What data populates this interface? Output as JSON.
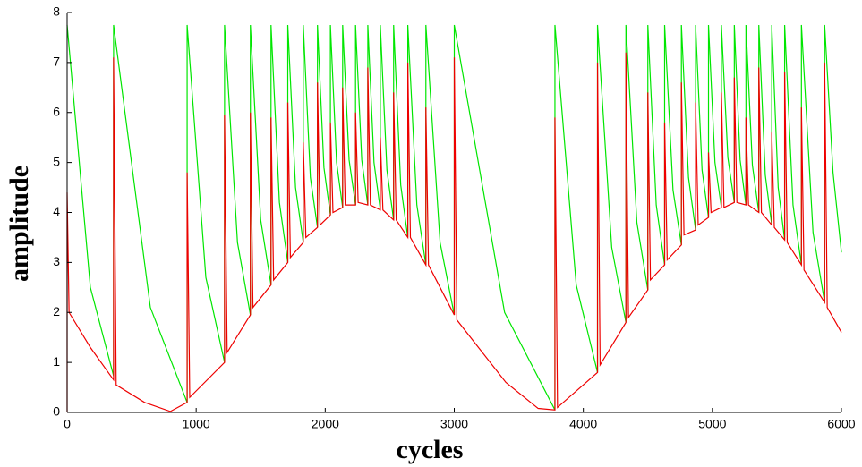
{
  "chart_data": {
    "type": "line",
    "x_label": "cycles",
    "y_label": "amplitude",
    "xlim": [
      0,
      6000
    ],
    "ylim": [
      0,
      8
    ],
    "xticks": [
      0,
      1000,
      2000,
      3000,
      4000,
      5000,
      6000
    ],
    "yticks": [
      0,
      1,
      2,
      3,
      4,
      5,
      6,
      7,
      8
    ],
    "series": [
      {
        "color": "#00e600",
        "x": [
          0,
          180,
          360,
          360,
          645,
          930,
          930,
          1075,
          1220,
          1220,
          1320,
          1420,
          1420,
          1500,
          1580,
          1580,
          1645,
          1710,
          1710,
          1770,
          1830,
          1830,
          1885,
          1940,
          1940,
          1990,
          2040,
          2040,
          2088,
          2135,
          2135,
          2185,
          2235,
          2235,
          2283,
          2330,
          2330,
          2378,
          2427,
          2427,
          2478,
          2530,
          2530,
          2585,
          2640,
          2640,
          2710,
          2780,
          2780,
          2890,
          3000,
          3000,
          3390,
          3780,
          3780,
          3945,
          4110,
          4110,
          4220,
          4330,
          4330,
          4415,
          4500,
          4500,
          4565,
          4630,
          4630,
          4695,
          4760,
          4760,
          4815,
          4870,
          4870,
          4920,
          4970,
          4970,
          5020,
          5070,
          5070,
          5120,
          5170,
          5170,
          5215,
          5260,
          5260,
          5310,
          5360,
          5360,
          5410,
          5460,
          5460,
          5510,
          5560,
          5560,
          5625,
          5690,
          5690,
          5780,
          5870,
          5870,
          5935,
          6000
        ],
        "values": [
          7.75,
          2.5,
          0.73,
          7.75,
          2.1,
          0.2,
          7.75,
          2.7,
          1.0,
          7.75,
          3.4,
          1.95,
          7.75,
          3.85,
          2.55,
          7.75,
          4.2,
          3.0,
          7.75,
          4.5,
          3.4,
          7.75,
          4.7,
          3.7,
          7.75,
          4.9,
          3.95,
          7.75,
          5.0,
          4.1,
          7.75,
          5.05,
          4.15,
          7.75,
          5.05,
          4.15,
          7.75,
          5.0,
          4.05,
          7.75,
          4.85,
          3.85,
          7.75,
          4.55,
          3.5,
          7.75,
          4.15,
          2.95,
          7.75,
          3.4,
          1.95,
          7.75,
          2.0,
          0.05,
          7.75,
          2.55,
          0.8,
          7.75,
          3.3,
          1.8,
          7.75,
          3.8,
          2.45,
          7.75,
          4.15,
          2.95,
          7.75,
          4.45,
          3.35,
          7.75,
          4.7,
          3.65,
          7.75,
          4.85,
          3.9,
          7.75,
          5.0,
          4.1,
          7.75,
          5.1,
          4.2,
          7.75,
          5.05,
          4.15,
          7.75,
          4.95,
          4.0,
          7.75,
          4.75,
          3.75,
          7.75,
          4.5,
          3.45,
          7.75,
          4.15,
          2.95,
          7.75,
          3.6,
          2.2,
          7.75,
          4.8,
          3.2
        ]
      },
      {
        "color": "#ee0000",
        "x": [
          0,
          0,
          15,
          180,
          360,
          360,
          380,
          600,
          800,
          930,
          930,
          950,
          1220,
          1220,
          1240,
          1420,
          1420,
          1440,
          1580,
          1580,
          1600,
          1710,
          1710,
          1730,
          1830,
          1830,
          1850,
          1940,
          1940,
          1960,
          2040,
          2040,
          2060,
          2135,
          2135,
          2155,
          2235,
          2235,
          2255,
          2330,
          2330,
          2350,
          2427,
          2427,
          2447,
          2530,
          2530,
          2550,
          2640,
          2640,
          2660,
          2780,
          2780,
          2800,
          3000,
          3000,
          3020,
          3400,
          3650,
          3780,
          3780,
          3800,
          4110,
          4110,
          4130,
          4330,
          4330,
          4350,
          4500,
          4500,
          4520,
          4630,
          4630,
          4650,
          4760,
          4760,
          4780,
          4870,
          4870,
          4890,
          4970,
          4970,
          4990,
          5070,
          5070,
          5090,
          5170,
          5170,
          5190,
          5260,
          5260,
          5280,
          5360,
          5360,
          5380,
          5460,
          5460,
          5480,
          5560,
          5560,
          5580,
          5690,
          5690,
          5710,
          5870,
          5870,
          5890,
          6000
        ],
        "values": [
          0,
          4.4,
          2.0,
          1.3,
          0.65,
          7.1,
          0.55,
          0.2,
          0.02,
          0.2,
          4.8,
          0.3,
          1.0,
          5.95,
          1.2,
          1.95,
          6.0,
          2.1,
          2.55,
          5.9,
          2.65,
          3.0,
          6.2,
          3.1,
          3.4,
          5.4,
          3.5,
          3.7,
          6.6,
          3.75,
          3.95,
          5.8,
          4.0,
          4.1,
          6.5,
          4.15,
          4.15,
          6.0,
          4.2,
          4.15,
          6.9,
          4.15,
          4.05,
          5.5,
          4.05,
          3.85,
          6.4,
          3.85,
          3.5,
          7.0,
          3.5,
          2.95,
          6.1,
          2.95,
          1.95,
          7.1,
          1.85,
          0.6,
          0.08,
          0.05,
          5.9,
          0.1,
          0.8,
          7.0,
          0.95,
          1.8,
          7.2,
          1.9,
          2.45,
          6.4,
          2.65,
          2.95,
          5.8,
          3.05,
          3.35,
          6.6,
          3.55,
          3.65,
          6.2,
          3.75,
          3.9,
          5.2,
          4.0,
          4.1,
          6.4,
          4.1,
          4.2,
          6.7,
          4.2,
          4.15,
          5.9,
          4.15,
          4.0,
          6.9,
          4.0,
          3.75,
          5.6,
          3.7,
          3.45,
          6.8,
          3.4,
          2.95,
          6.1,
          2.85,
          2.2,
          7.0,
          2.1,
          1.6
        ]
      }
    ]
  }
}
